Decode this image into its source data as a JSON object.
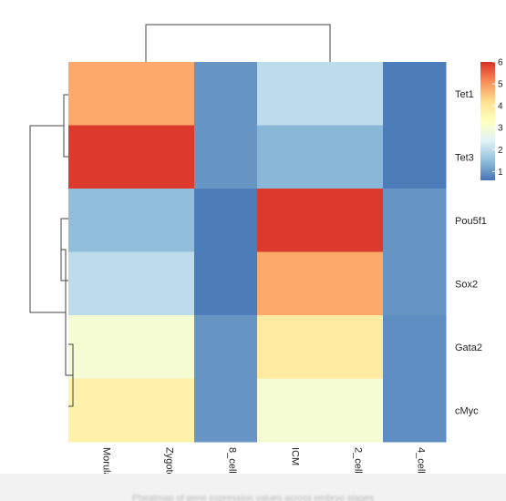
{
  "chart_data": {
    "type": "heatmap",
    "title": "",
    "rows": [
      "Tet1",
      "Tet3",
      "Pou5f1",
      "Sox2",
      "Gata2",
      "cMyc"
    ],
    "columns": [
      "Morula",
      "Zygote",
      "8_cell",
      "ICM",
      "2_cell",
      "4_cell"
    ],
    "values": [
      [
        4.8,
        4.8,
        1.0,
        2.0,
        2.0,
        0.7
      ],
      [
        5.9,
        5.9,
        1.0,
        1.4,
        1.4,
        0.7
      ],
      [
        1.5,
        1.5,
        0.7,
        5.9,
        5.9,
        1.0
      ],
      [
        2.0,
        2.0,
        0.7,
        4.8,
        4.8,
        1.0
      ],
      [
        3.0,
        3.0,
        1.0,
        3.9,
        3.9,
        0.9
      ],
      [
        3.7,
        3.7,
        1.0,
        3.0,
        3.0,
        0.9
      ]
    ],
    "color_scale": {
      "min": 0.6,
      "max": 6,
      "ticks": [
        1,
        2,
        3,
        4,
        5,
        6
      ],
      "colors": [
        "#4575b4",
        "#91bfdb",
        "#e0f3f8",
        "#ffffbf",
        "#fee090",
        "#fc8d59",
        "#d73027"
      ]
    },
    "row_dendrogram": true,
    "column_dendrogram": true,
    "legend_position": "right"
  },
  "footer": {
    "caption": "Pheatmap of gene expression values across embryo stages"
  }
}
